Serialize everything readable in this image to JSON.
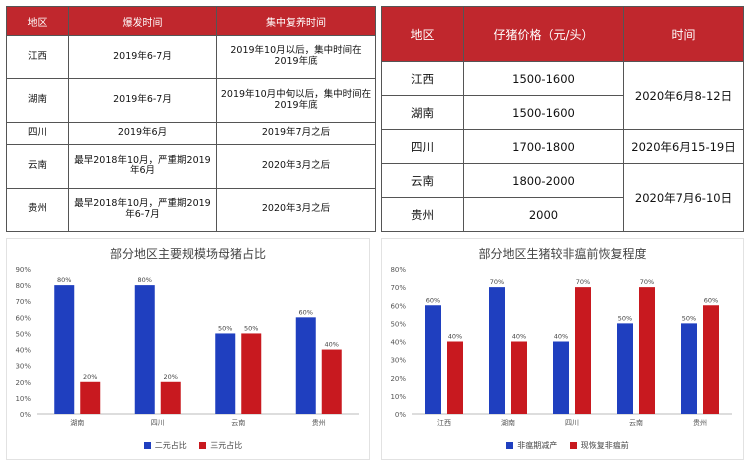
{
  "table1": {
    "headers": [
      "地区",
      "爆发时间",
      "集中复养时间"
    ],
    "rows": [
      [
        "江西",
        "2019年6-7月",
        "2019年10月以后，集中时间在2019年底"
      ],
      [
        "湖南",
        "2019年6-7月",
        "2019年10月中旬以后，集中时间在2019年底"
      ],
      [
        "四川",
        "2019年6月",
        "2019年7月之后"
      ],
      [
        "云南",
        "最早2018年10月，严重期2019年6月",
        "2020年3月之后"
      ],
      [
        "贵州",
        "最早2018年10月，严重期2019年6-7月",
        "2020年3月之后"
      ]
    ]
  },
  "table2": {
    "headers": [
      "地区",
      "仔猪价格（元/头）",
      "时间"
    ],
    "rows": [
      {
        "region": "江西",
        "price": "1500-1600"
      },
      {
        "region": "湖南",
        "price": "1500-1600"
      },
      {
        "region": "四川",
        "price": "1700-1800"
      },
      {
        "region": "云南",
        "price": "1800-2000"
      },
      {
        "region": "贵州",
        "price": "2000"
      }
    ],
    "times": [
      "2020年6月8-12日",
      "2020年6月15-19日",
      "2020年7月6-10日"
    ]
  },
  "colors": {
    "blue": "#1f3fbf",
    "red": "#c8191f",
    "header_red": "#c0272d"
  },
  "chart_data": [
    {
      "type": "bar",
      "title": "部分地区主要规模场母猪占比",
      "categories": [
        "湖南",
        "四川",
        "云南",
        "贵州"
      ],
      "series": [
        {
          "name": "二元占比",
          "values": [
            80,
            80,
            50,
            60
          ],
          "labels": [
            "80%",
            "80%",
            "50%",
            "60%"
          ],
          "color": "#1f3fbf"
        },
        {
          "name": "三元占比",
          "values": [
            20,
            20,
            50,
            40
          ],
          "labels": [
            "20%",
            "20%",
            "50%",
            "40%"
          ],
          "color": "#c8191f"
        }
      ],
      "yticks": [
        "0%",
        "10%",
        "20%",
        "30%",
        "40%",
        "50%",
        "60%",
        "70%",
        "80%",
        "90%"
      ],
      "ylim": [
        0,
        90
      ],
      "legend": "bottom",
      "grid": false
    },
    {
      "type": "bar",
      "title": "部分地区生猪较非瘟前恢复程度",
      "categories": [
        "江西",
        "湖南",
        "四川",
        "云南",
        "贵州"
      ],
      "series": [
        {
          "name": "非瘟期减产",
          "values": [
            60,
            70,
            40,
            50,
            50
          ],
          "labels": [
            "60%",
            "70%",
            "40%",
            "50%",
            "50%"
          ],
          "color": "#1f3fbf"
        },
        {
          "name": "现恢复非瘟前",
          "values": [
            40,
            40,
            70,
            70,
            60
          ],
          "labels": [
            "40%",
            "40%",
            "70%",
            "70%",
            "60%"
          ],
          "color": "#c8191f"
        }
      ],
      "yticks": [
        "0%",
        "10%",
        "20%",
        "30%",
        "40%",
        "50%",
        "60%",
        "70%",
        "80%"
      ],
      "ylim": [
        0,
        80
      ],
      "legend": "bottom",
      "grid": false
    }
  ]
}
